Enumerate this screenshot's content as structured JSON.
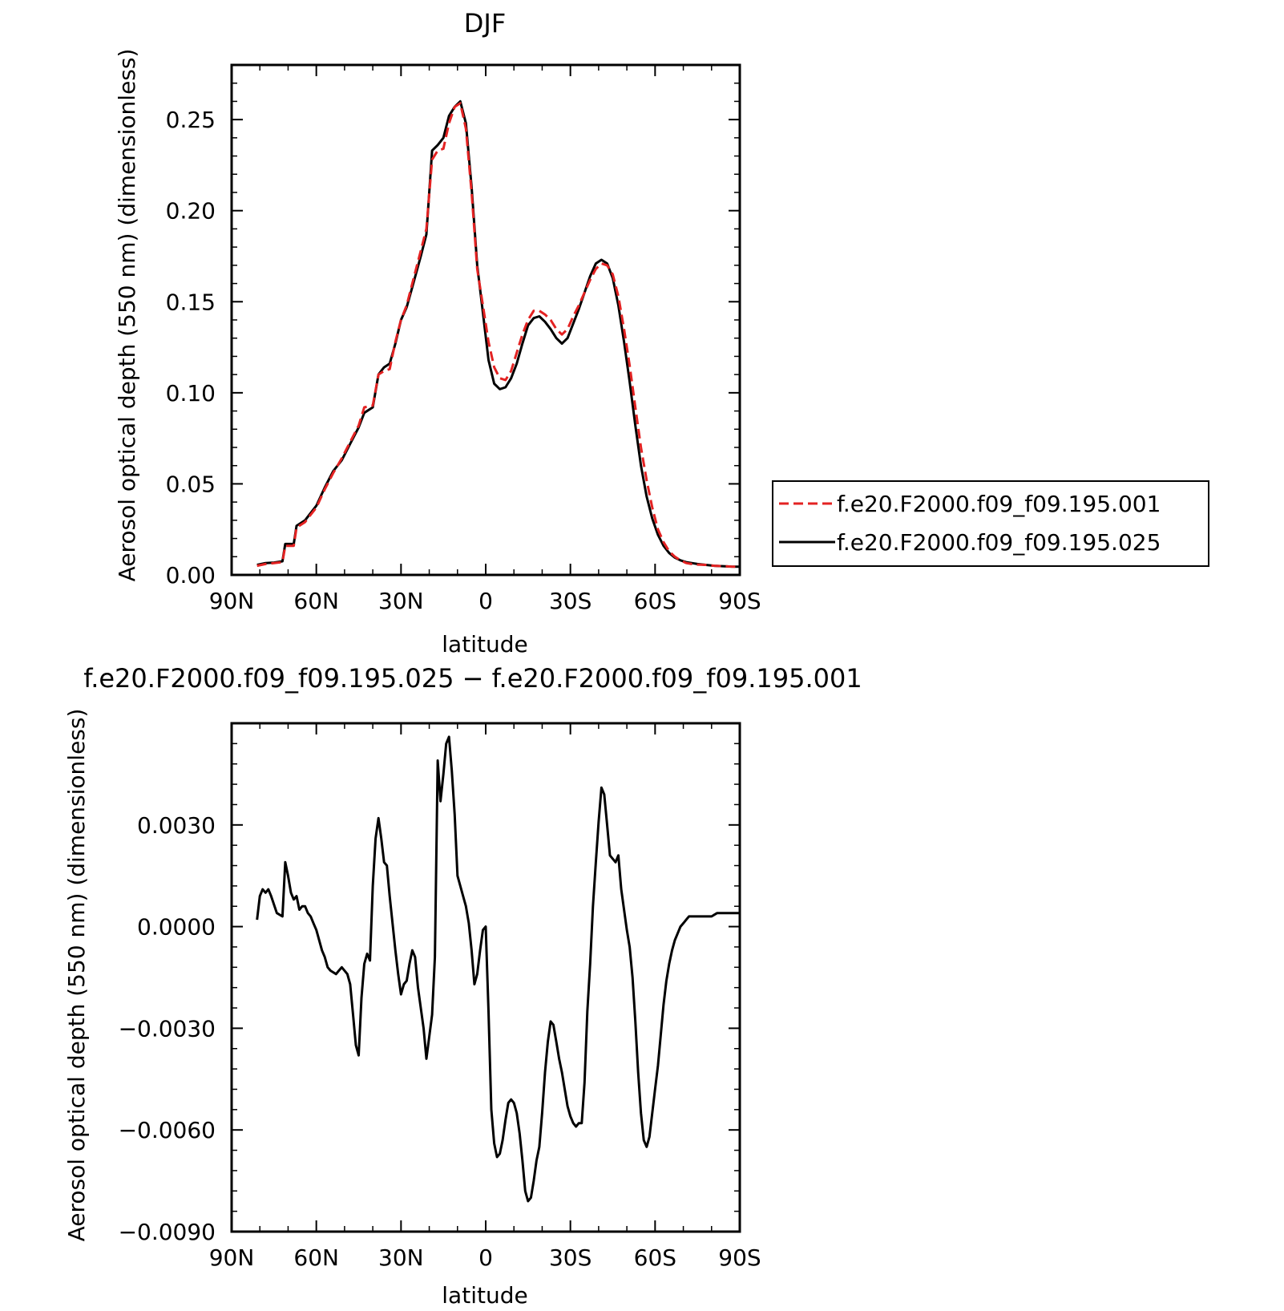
{
  "chart_data": [
    {
      "type": "line",
      "title": "DJF",
      "xlabel": "latitude",
      "ylabel": "Aerosol optical depth (550 nm) (dimensionless)",
      "x_ticks": [
        "90N",
        "60N",
        "30N",
        "0",
        "30S",
        "60S",
        "90S"
      ],
      "x_tick_values": [
        90,
        60,
        30,
        0,
        -30,
        -60,
        -90
      ],
      "xlim": [
        90,
        -90
      ],
      "y_ticks": [
        "0.00",
        "0.05",
        "0.10",
        "0.15",
        "0.20",
        "0.25"
      ],
      "y_tick_values": [
        0,
        0.05,
        0.1,
        0.15,
        0.2,
        0.25
      ],
      "ylim": [
        0,
        0.28
      ],
      "grid": false,
      "legend": {
        "position": "right",
        "entries": [
          {
            "label": "f.e20.F2000.f09_f09.195.001",
            "color": "#e32222",
            "dash": "dashed"
          },
          {
            "label": "f.e20.F2000.f09_f09.195.025",
            "color": "#000000",
            "dash": "solid"
          }
        ]
      },
      "series": [
        {
          "name": "f.e20.F2000.f09_f09.195.001",
          "color": "#e32222",
          "dashed": true,
          "x": [
            81,
            78,
            75,
            72,
            71,
            68,
            67,
            64,
            62,
            60,
            57,
            54,
            51,
            48,
            45,
            43,
            40,
            38,
            36,
            34,
            32,
            30,
            28,
            26,
            23,
            21,
            19,
            17,
            15,
            13,
            11,
            9,
            7,
            5,
            3,
            1,
            -1,
            -3,
            -5,
            -7,
            -9,
            -11,
            -13,
            -15,
            -17,
            -19,
            -21,
            -23,
            -25,
            -27,
            -29,
            -31,
            -33,
            -35,
            -37,
            -39,
            -41,
            -43,
            -45,
            -47,
            -49,
            -51,
            -53,
            -55,
            -57,
            -59,
            -61,
            -63,
            -65,
            -67,
            -69,
            -71,
            -73,
            -75,
            -78,
            -81,
            -84,
            -87,
            -90
          ],
          "y": [
            0.005,
            0.006,
            0.0065,
            0.007,
            0.016,
            0.016,
            0.026,
            0.029,
            0.033,
            0.037,
            0.047,
            0.056,
            0.064,
            0.073,
            0.082,
            0.092,
            0.093,
            0.11,
            0.112,
            0.113,
            0.128,
            0.14,
            0.148,
            0.16,
            0.178,
            0.19,
            0.228,
            0.233,
            0.234,
            0.248,
            0.257,
            0.259,
            0.245,
            0.21,
            0.168,
            0.148,
            0.128,
            0.114,
            0.108,
            0.107,
            0.112,
            0.122,
            0.132,
            0.14,
            0.145,
            0.145,
            0.143,
            0.14,
            0.135,
            0.132,
            0.135,
            0.142,
            0.148,
            0.155,
            0.162,
            0.168,
            0.171,
            0.17,
            0.165,
            0.153,
            0.135,
            0.115,
            0.092,
            0.07,
            0.052,
            0.037,
            0.025,
            0.018,
            0.013,
            0.01,
            0.008,
            0.0065,
            0.006,
            0.0057,
            0.0055,
            0.005,
            0.0048,
            0.0046,
            0.0045
          ]
        },
        {
          "name": "f.e20.F2000.f09_f09.195.025",
          "color": "#000000",
          "dashed": false,
          "x": [
            81,
            78,
            75,
            72,
            71,
            68,
            67,
            64,
            62,
            60,
            57,
            54,
            51,
            48,
            45,
            43,
            40,
            38,
            36,
            34,
            32,
            30,
            28,
            26,
            23,
            21,
            19,
            17,
            15,
            13,
            11,
            9,
            7,
            5,
            3,
            1,
            -1,
            -3,
            -5,
            -7,
            -9,
            -11,
            -13,
            -15,
            -17,
            -19,
            -21,
            -23,
            -25,
            -27,
            -29,
            -31,
            -33,
            -35,
            -37,
            -39,
            -41,
            -43,
            -45,
            -47,
            -49,
            -51,
            -53,
            -55,
            -57,
            -59,
            -61,
            -63,
            -65,
            -67,
            -69,
            -71,
            -73,
            -75,
            -78,
            -81,
            -84,
            -87,
            -90
          ],
          "y": [
            0.0055,
            0.0065,
            0.0068,
            0.0075,
            0.017,
            0.017,
            0.027,
            0.03,
            0.034,
            0.038,
            0.048,
            0.057,
            0.063,
            0.072,
            0.081,
            0.089,
            0.092,
            0.11,
            0.114,
            0.116,
            0.127,
            0.14,
            0.147,
            0.158,
            0.175,
            0.187,
            0.233,
            0.236,
            0.24,
            0.252,
            0.257,
            0.26,
            0.248,
            0.213,
            0.17,
            0.144,
            0.118,
            0.105,
            0.102,
            0.103,
            0.108,
            0.116,
            0.127,
            0.137,
            0.141,
            0.142,
            0.139,
            0.135,
            0.13,
            0.127,
            0.13,
            0.138,
            0.146,
            0.155,
            0.164,
            0.171,
            0.173,
            0.171,
            0.163,
            0.148,
            0.128,
            0.106,
            0.082,
            0.06,
            0.043,
            0.031,
            0.022,
            0.016,
            0.012,
            0.0095,
            0.008,
            0.007,
            0.0065,
            0.006,
            0.0055,
            0.005,
            0.0048,
            0.0046,
            0.0045
          ]
        }
      ]
    },
    {
      "type": "line",
      "title": "f.e20.F2000.f09_f09.195.025 − f.e20.F2000.f09_f09.195.001",
      "xlabel": "latitude",
      "ylabel": "Aerosol optical depth (550 nm) (dimensionless)",
      "x_ticks": [
        "90N",
        "60N",
        "30N",
        "0",
        "30S",
        "60S",
        "90S"
      ],
      "x_tick_values": [
        90,
        60,
        30,
        0,
        -30,
        -60,
        -90
      ],
      "xlim": [
        90,
        -90
      ],
      "y_ticks": [
        "0.0030",
        "0.0000",
        "−0.0030",
        "−0.0060",
        "−0.0090"
      ],
      "y_tick_values": [
        0.003,
        0,
        -0.003,
        -0.006,
        -0.009
      ],
      "ylim": [
        -0.009,
        0.006
      ],
      "grid": false,
      "series": [
        {
          "color": "#000000",
          "dashed": false,
          "x": [
            81,
            80,
            79,
            78,
            77,
            76,
            74,
            72,
            71,
            70,
            69,
            68,
            67,
            66,
            65,
            64,
            63,
            62,
            61,
            60,
            58,
            57,
            56,
            55,
            53,
            52,
            51,
            49,
            48,
            47,
            46,
            45,
            44,
            43,
            42,
            41,
            40,
            39,
            38,
            37,
            36,
            35,
            34,
            32,
            31,
            30,
            29,
            28,
            27,
            26,
            25,
            24,
            22,
            21,
            19,
            18,
            17,
            16,
            15,
            14,
            13,
            12,
            11,
            10,
            9,
            8,
            7,
            6,
            5,
            4,
            3,
            2,
            1,
            0,
            -1,
            -2,
            -3,
            -4,
            -5,
            -6,
            -7,
            -8,
            -9,
            -10,
            -11,
            -12,
            -13,
            -14,
            -15,
            -16,
            -17,
            -18,
            -19,
            -20,
            -21,
            -22,
            -23,
            -24,
            -25,
            -26,
            -27,
            -28,
            -29,
            -30,
            -31,
            -32,
            -33,
            -34,
            -35,
            -36,
            -37,
            -38,
            -39,
            -40,
            -41,
            -42,
            -43,
            -44,
            -45,
            -46,
            -47,
            -48,
            -49,
            -50,
            -51,
            -52,
            -53,
            -54,
            -55,
            -56,
            -57,
            -58,
            -59,
            -60,
            -61,
            -62,
            -63,
            -64,
            -65,
            -66,
            -67,
            -68,
            -69,
            -70,
            -71,
            -72,
            -74,
            -76,
            -78,
            -80,
            -82,
            -84,
            -86,
            -88,
            -90
          ],
          "y": [
            0.0002,
            0.0009,
            0.0011,
            0.001,
            0.0011,
            0.0009,
            0.0004,
            0.0003,
            0.0019,
            0.0015,
            0.001,
            0.0008,
            0.0009,
            0.0005,
            0.0006,
            0.0006,
            0.0004,
            0.0003,
            0.0001,
            -0.0001,
            -0.0007,
            -0.0009,
            -0.0012,
            -0.0013,
            -0.0014,
            -0.0013,
            -0.0012,
            -0.0014,
            -0.0017,
            -0.0026,
            -0.0035,
            -0.0038,
            -0.0021,
            -0.0011,
            -0.0008,
            -0.001,
            0.0012,
            0.0026,
            0.0032,
            0.0026,
            0.0019,
            0.0018,
            0.0009,
            -0.0007,
            -0.0014,
            -0.002,
            -0.0017,
            -0.0016,
            -0.0011,
            -0.0007,
            -0.0009,
            -0.0018,
            -0.003,
            -0.0039,
            -0.0026,
            -0.0009,
            0.0049,
            0.0037,
            0.0045,
            0.0054,
            0.0056,
            0.0046,
            0.0033,
            0.0015,
            0.0012,
            0.0009,
            0.0006,
            0.0001,
            -0.0007,
            -0.0017,
            -0.0014,
            -0.0007,
            -0.0001,
            0.0,
            -0.0025,
            -0.0054,
            -0.0064,
            -0.0068,
            -0.0067,
            -0.0063,
            -0.0057,
            -0.0052,
            -0.0051,
            -0.0052,
            -0.0055,
            -0.0061,
            -0.0069,
            -0.0078,
            -0.0081,
            -0.008,
            -0.0075,
            -0.0069,
            -0.0065,
            -0.0055,
            -0.0043,
            -0.0034,
            -0.0028,
            -0.0029,
            -0.0034,
            -0.0039,
            -0.0043,
            -0.0048,
            -0.0053,
            -0.0056,
            -0.0058,
            -0.0059,
            -0.0058,
            -0.0058,
            -0.0046,
            -0.0025,
            -0.0011,
            0.0006,
            0.0019,
            0.0031,
            0.0041,
            0.0039,
            0.003,
            0.0021,
            0.002,
            0.0019,
            0.0021,
            0.0011,
            0.0005,
            -0.0001,
            -0.0006,
            -0.0015,
            -0.0028,
            -0.0043,
            -0.0055,
            -0.0063,
            -0.0065,
            -0.0062,
            -0.0055,
            -0.0048,
            -0.0041,
            -0.0032,
            -0.0023,
            -0.0016,
            -0.0011,
            -0.0007,
            -0.0004,
            -0.0002,
            0.0,
            0.0001,
            0.0002,
            0.0003,
            0.0003,
            0.0003,
            0.0003,
            0.0003,
            0.0004,
            0.0004,
            0.0004,
            0.0004,
            0.0004
          ]
        }
      ]
    }
  ]
}
